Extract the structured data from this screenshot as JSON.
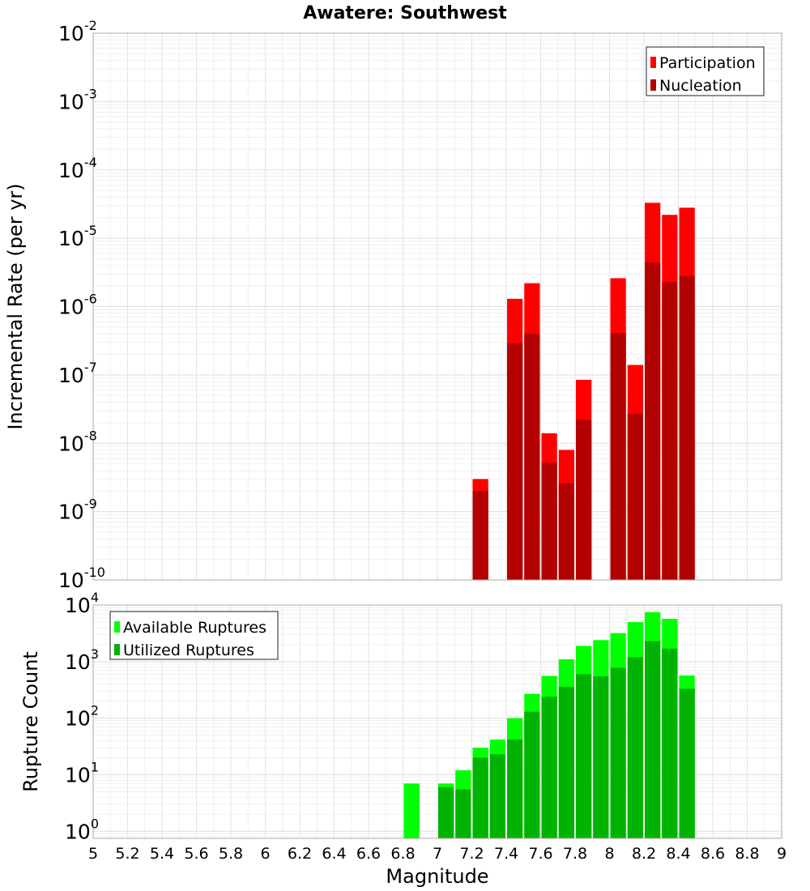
{
  "chart_data": [
    {
      "type": "bar",
      "title": "Awatere: Southwest",
      "xlabel": "Magnitude",
      "ylabel": "Incremental Rate (per yr)",
      "yscale": "log",
      "ylim": [
        1e-10,
        0.01
      ],
      "xlim": [
        5,
        9
      ],
      "bin_width": 0.1,
      "grid": true,
      "legend_position": "top-right",
      "x_ticks": [
        "5",
        "5.2",
        "5.4",
        "5.6",
        "5.8",
        "6",
        "6.2",
        "6.4",
        "6.6",
        "6.8",
        "7",
        "7.2",
        "7.4",
        "7.6",
        "7.8",
        "8",
        "8.2",
        "8.4",
        "8.6",
        "8.8",
        "9"
      ],
      "y_tick_exponents": [
        "-10",
        "-9",
        "-8",
        "-7",
        "-6",
        "-5",
        "-4",
        "-3",
        "-2"
      ],
      "y_tick_base": "10",
      "series": [
        {
          "name": "Participation",
          "color": "#ff0000",
          "x": [
            7.25,
            7.45,
            7.55,
            7.65,
            7.75,
            7.85,
            8.05,
            8.15,
            8.25,
            8.35,
            8.45
          ],
          "values": [
            3e-09,
            1.3e-06,
            2.2e-06,
            1.4e-08,
            8e-09,
            8.5e-08,
            2.6e-06,
            1.4e-07,
            3.3e-05,
            2.2e-05,
            2.8e-05
          ]
        },
        {
          "name": "Nucleation",
          "color": "#b30000",
          "x": [
            7.25,
            7.45,
            7.55,
            7.65,
            7.75,
            7.85,
            8.05,
            8.15,
            8.25,
            8.35,
            8.45
          ],
          "values": [
            2e-09,
            2.9e-07,
            4e-07,
            5.2e-09,
            2.6e-09,
            2.2e-08,
            4.1e-07,
            2.7e-08,
            4.4e-06,
            2.3e-06,
            2.8e-06
          ]
        }
      ]
    },
    {
      "type": "bar",
      "xlabel": "Magnitude",
      "ylabel": "Rupture Count",
      "yscale": "log",
      "ylim": [
        0.75,
        10000
      ],
      "xlim": [
        5,
        9
      ],
      "bin_width": 0.1,
      "grid": true,
      "legend_position": "top-left",
      "y_tick_exponents": [
        "0",
        "1",
        "2",
        "3",
        "4"
      ],
      "y_tick_base": "10",
      "series": [
        {
          "name": "Available Ruptures",
          "color": "#00ff00",
          "x": [
            6.85,
            7.05,
            7.15,
            7.25,
            7.35,
            7.45,
            7.55,
            7.65,
            7.75,
            7.85,
            7.95,
            8.05,
            8.15,
            8.25,
            8.35,
            8.45
          ],
          "values": [
            7,
            7,
            12,
            30,
            42,
            100,
            270,
            560,
            1100,
            1900,
            2400,
            3200,
            5000,
            7500,
            5700,
            570
          ]
        },
        {
          "name": "Utilized Ruptures",
          "color": "#00b300",
          "x": [
            7.05,
            7.15,
            7.25,
            7.35,
            7.45,
            7.55,
            7.65,
            7.75,
            7.85,
            7.95,
            8.05,
            8.15,
            8.25,
            8.35,
            8.45
          ],
          "values": [
            6,
            5.5,
            20,
            23,
            42,
            130,
            240,
            360,
            600,
            550,
            780,
            1200,
            2300,
            1700,
            330
          ]
        }
      ]
    }
  ]
}
